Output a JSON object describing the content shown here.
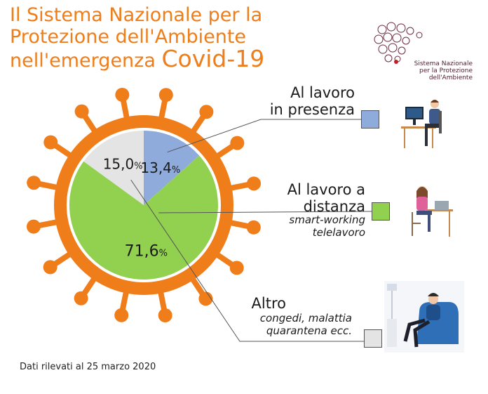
{
  "title": {
    "line1": "Il Sistema Nazionale per la",
    "line2": "Protezione dell'Ambiente",
    "line3": "nell'emergenza",
    "line3_big": "Covid-19"
  },
  "logo": {
    "line1": "Sistema Nazionale",
    "line2": "per la Protezione",
    "line3": "dell'Ambiente"
  },
  "legend": {
    "presenza": {
      "title1": "Al lavoro",
      "title2": "in presenza"
    },
    "distanza": {
      "title1": "Al lavoro a",
      "title2": "distanza",
      "sub1": "smart-working",
      "sub2": "telelavoro"
    },
    "altro": {
      "title1": "Altro",
      "sub1": "congedi, malattia",
      "sub2": "quarantena ecc."
    }
  },
  "footnote": "Dati rilevati al 25 marzo 2020",
  "colors": {
    "presenza": "#8fabdc",
    "distanza": "#92d050",
    "altro": "#e4e4e4",
    "virus": "#ef7d1a"
  },
  "chart_data": {
    "type": "pie",
    "slices": [
      {
        "key": "presenza",
        "value": 13.4,
        "label": "13,4",
        "unit": "%"
      },
      {
        "key": "distanza",
        "value": 71.6,
        "label": "71,6",
        "unit": "%"
      },
      {
        "key": "altro",
        "value": 15.0,
        "label": "15,0",
        "unit": "%"
      }
    ]
  }
}
